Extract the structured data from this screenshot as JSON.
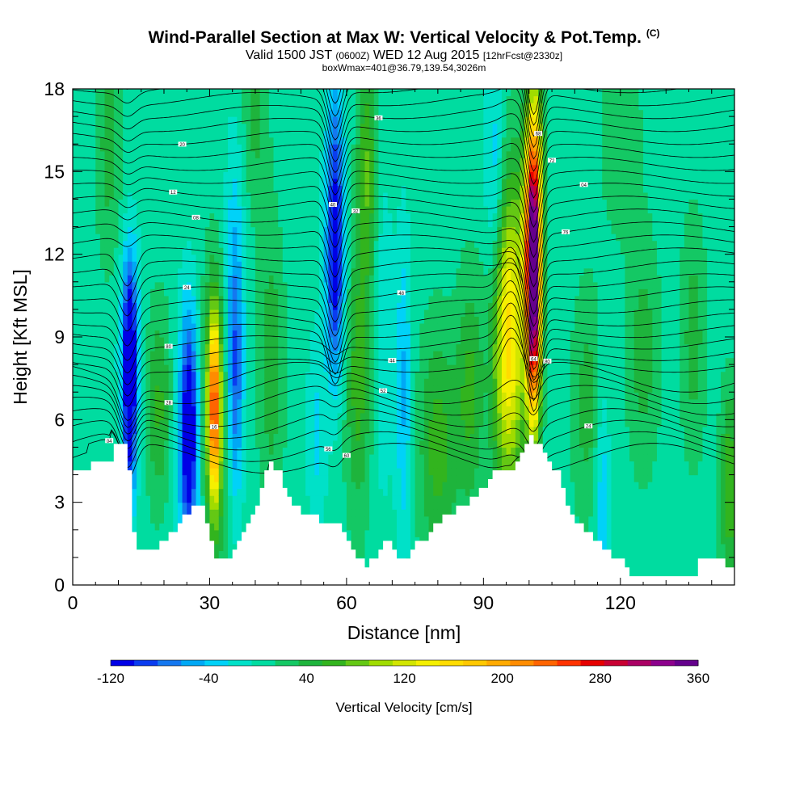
{
  "header": {
    "title": "Wind-Parallel Section at Max W: Vertical Velocity & Pot.Temp.",
    "copyright": "(C)",
    "valid_prefix": "Valid 1500 JST",
    "valid_utc": "(0600Z)",
    "valid_date": "WED 12 Aug 2015",
    "forecast": "[12hrFcst@2330z]",
    "boxwmax": "boxWmax=401@36.79,139.54,3026m"
  },
  "chart_data": {
    "type": "heatmap",
    "xlabel": "Distance [nm]",
    "ylabel": "Height [Kft MSL]",
    "xlim": [
      0,
      145
    ],
    "ylim": [
      0,
      18
    ],
    "x_ticks": [
      0,
      30,
      60,
      90,
      120
    ],
    "y_ticks": [
      0,
      3,
      6,
      9,
      12,
      15,
      18
    ],
    "grid": false,
    "legend_placement": "bottom colorbar",
    "colorbar": {
      "label": "Vertical Velocity [cm/s]",
      "tick_values": [
        -120,
        -40,
        40,
        120,
        200,
        280,
        360
      ],
      "levels": [
        -120,
        -100,
        -80,
        -60,
        -40,
        -20,
        0,
        20,
        40,
        60,
        80,
        100,
        120,
        140,
        160,
        180,
        200,
        220,
        240,
        260,
        280,
        300,
        320,
        340,
        360
      ],
      "colors": [
        "#0000e6",
        "#0a3cf0",
        "#1478f0",
        "#00a8f5",
        "#00d2f8",
        "#00e1c8",
        "#00dca0",
        "#14c864",
        "#1eb43c",
        "#32b41e",
        "#64c814",
        "#a0dc00",
        "#d2e600",
        "#f5f000",
        "#ffdc00",
        "#ffc800",
        "#ffaa00",
        "#ff8c00",
        "#ff6400",
        "#ff3200",
        "#e60000",
        "#c80032",
        "#aa0064",
        "#8c008c",
        "#64008c"
      ]
    },
    "background_w": 10,
    "terrain": [
      [
        0,
        4.3
      ],
      [
        3,
        4.3
      ],
      [
        3,
        4.6
      ],
      [
        8,
        4.6
      ],
      [
        8,
        5.0
      ],
      [
        11,
        5.0
      ],
      [
        12,
        4.0
      ],
      [
        13,
        2.0
      ],
      [
        14,
        1.3
      ],
      [
        18,
        1.3
      ],
      [
        20,
        1.6
      ],
      [
        22,
        2.0
      ],
      [
        24,
        2.4
      ],
      [
        25,
        2.7
      ],
      [
        26,
        3.0
      ],
      [
        28,
        3.0
      ],
      [
        30,
        1.6
      ],
      [
        31,
        1.0
      ],
      [
        34,
        1.0
      ],
      [
        36,
        1.6
      ],
      [
        38,
        2.2
      ],
      [
        40,
        3.0
      ],
      [
        42,
        4.0
      ],
      [
        43,
        4.6
      ],
      [
        45,
        4.0
      ],
      [
        47,
        3.2
      ],
      [
        50,
        2.6
      ],
      [
        53,
        2.4
      ],
      [
        56,
        2.2
      ],
      [
        58,
        2.2
      ],
      [
        60,
        1.6
      ],
      [
        62,
        1.0
      ],
      [
        64,
        0.7
      ],
      [
        66,
        1.0
      ],
      [
        68,
        1.6
      ],
      [
        70,
        1.3
      ],
      [
        72,
        0.8
      ],
      [
        74,
        1.4
      ],
      [
        77,
        1.7
      ],
      [
        80,
        2.3
      ],
      [
        83,
        2.6
      ],
      [
        86,
        3.0
      ],
      [
        88,
        3.3
      ],
      [
        90,
        3.6
      ],
      [
        92,
        4.0
      ],
      [
        94,
        4.2
      ],
      [
        96,
        4.3
      ],
      [
        98,
        4.8
      ],
      [
        100,
        5.3
      ],
      [
        102,
        5.0
      ],
      [
        104,
        4.4
      ],
      [
        106,
        4.0
      ],
      [
        108,
        2.9
      ],
      [
        110,
        2.3
      ],
      [
        112,
        2.0
      ],
      [
        114,
        1.6
      ],
      [
        116,
        1.3
      ],
      [
        118,
        1.0
      ],
      [
        120,
        1.0
      ],
      [
        122,
        0.3
      ],
      [
        136,
        0.3
      ],
      [
        137,
        1.0
      ],
      [
        140,
        1.0
      ],
      [
        143,
        0.7
      ],
      [
        145,
        0.7
      ]
    ],
    "w_features": [
      {
        "x": 12.5,
        "y": 6.5,
        "w": -120,
        "sx": 1.0,
        "sy": 3.0
      },
      {
        "x": 12.5,
        "y": 9.0,
        "w": -80,
        "sx": 1.5,
        "sy": 2.5
      },
      {
        "x": 19,
        "y": 6.5,
        "w": 55,
        "sx": 2.0,
        "sy": 2.5
      },
      {
        "x": 25.5,
        "y": 5.8,
        "w": -110,
        "sx": 1.3,
        "sy": 2.8
      },
      {
        "x": 25.5,
        "y": 5.0,
        "w": -50,
        "sx": 2.5,
        "sy": 3.5
      },
      {
        "x": 31,
        "y": 6.5,
        "w": 180,
        "sx": 0.9,
        "sy": 2.3
      },
      {
        "x": 31,
        "y": 6.0,
        "w": 90,
        "sx": 2.2,
        "sy": 3.5
      },
      {
        "x": 35.5,
        "y": 7.0,
        "w": -80,
        "sx": 1.3,
        "sy": 3.0
      },
      {
        "x": 35.5,
        "y": 11.5,
        "w": -45,
        "sx": 1.5,
        "sy": 3.5
      },
      {
        "x": 43.5,
        "y": 8.0,
        "w": 45,
        "sx": 2.0,
        "sy": 3.5
      },
      {
        "x": 53.5,
        "y": 5.5,
        "w": -35,
        "sx": 1.5,
        "sy": 2.5
      },
      {
        "x": 57.5,
        "y": 14.0,
        "w": -100,
        "sx": 1.4,
        "sy": 3.5
      },
      {
        "x": 57.5,
        "y": 10.5,
        "w": -60,
        "sx": 1.5,
        "sy": 2.5
      },
      {
        "x": 62.5,
        "y": 7.5,
        "w": 60,
        "sx": 2.0,
        "sy": 3.5
      },
      {
        "x": 64.5,
        "y": 15.0,
        "w": 70,
        "sx": 1.5,
        "sy": 3.0
      },
      {
        "x": 68,
        "y": 9.0,
        "w": -30,
        "sx": 1.5,
        "sy": 4.0
      },
      {
        "x": 72.5,
        "y": 7.0,
        "w": -55,
        "sx": 1.2,
        "sy": 4.0
      },
      {
        "x": 80,
        "y": 5.0,
        "w": 60,
        "sx": 3.0,
        "sy": 3.0
      },
      {
        "x": 87,
        "y": 7.0,
        "w": 55,
        "sx": 2.0,
        "sy": 3.0
      },
      {
        "x": 95.5,
        "y": 9.0,
        "w": 160,
        "sx": 2.5,
        "sy": 4.0
      },
      {
        "x": 101,
        "y": 10.5,
        "w": 320,
        "sx": 1.1,
        "sy": 3.3
      },
      {
        "x": 100.5,
        "y": 13.0,
        "w": 140,
        "sx": 1.4,
        "sy": 3.0
      },
      {
        "x": 101.5,
        "y": 16.0,
        "w": 60,
        "sx": 1.3,
        "sy": 2.5
      },
      {
        "x": 92.5,
        "y": 14.5,
        "w": -55,
        "sx": 1.5,
        "sy": 3.0
      },
      {
        "x": 113,
        "y": 6.5,
        "w": 40,
        "sx": 2.5,
        "sy": 3.0
      },
      {
        "x": 116,
        "y": 3.5,
        "w": -50,
        "sx": 1.2,
        "sy": 3.0
      },
      {
        "x": 125,
        "y": 8.5,
        "w": 40,
        "sx": 2.5,
        "sy": 3.0
      },
      {
        "x": 136,
        "y": 9.0,
        "w": 40,
        "sx": 2.0,
        "sy": 3.0
      },
      {
        "x": 144,
        "y": 3.5,
        "w": 70,
        "sx": 1.5,
        "sy": 2.5
      },
      {
        "x": 8,
        "y": 16.0,
        "w": 40,
        "sx": 2.0,
        "sy": 3.0
      },
      {
        "x": 40,
        "y": 17.0,
        "w": 35,
        "sx": 2.0,
        "sy": 2.5
      },
      {
        "x": 120,
        "y": 16.5,
        "w": 30,
        "sx": 3.0,
        "sy": 2.5
      }
    ],
    "theta_labels": [
      "04",
      "80",
      "24",
      "08",
      "12",
      "16",
      "20",
      "28",
      "32",
      "36",
      "40",
      "44",
      "48",
      "52",
      "56",
      "60",
      "64",
      "68",
      "72",
      "76"
    ]
  }
}
